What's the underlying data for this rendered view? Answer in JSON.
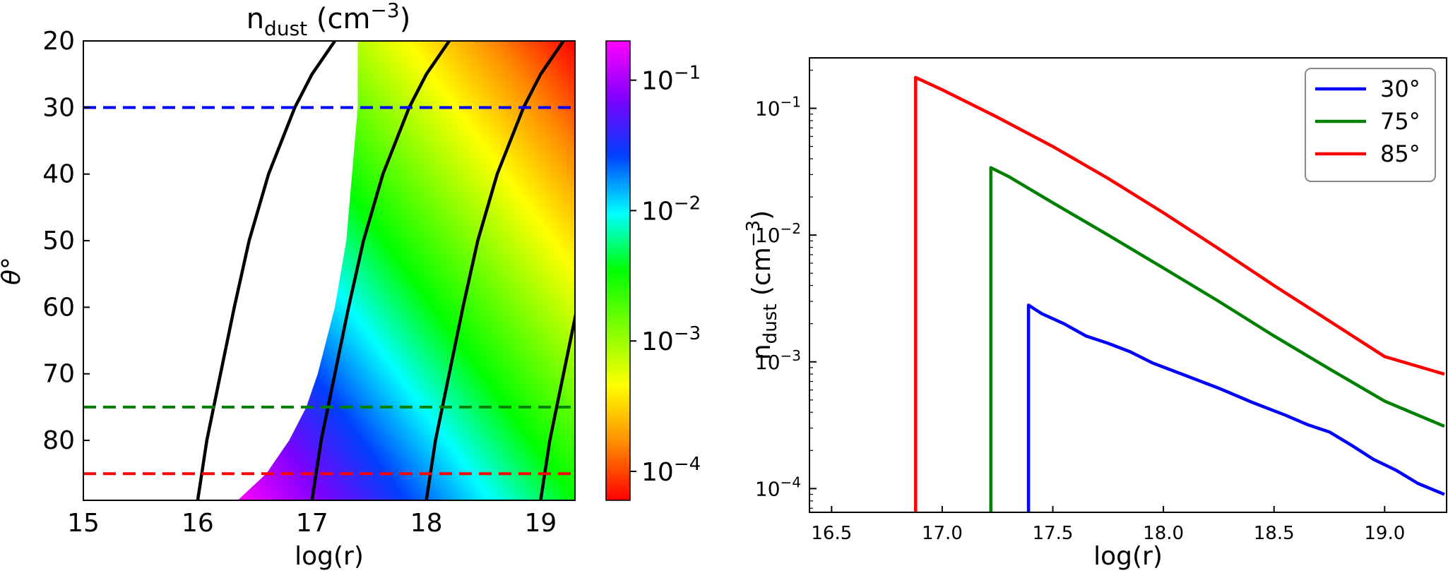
{
  "chart_data": [
    {
      "type": "heatmap",
      "title_main": "n",
      "title_sub": "dust",
      "title_unit": " (cm",
      "title_exp": "−3",
      "title_close": ")",
      "xlabel": "log(r)",
      "ylabel_symbol": "θ",
      "ylabel_degree": "°",
      "xlim": [
        15,
        19.3
      ],
      "ylim": [
        20,
        89
      ],
      "y_inverted": true,
      "xticks": [
        "15",
        "16",
        "17",
        "18",
        "19"
      ],
      "yticks": [
        "20",
        "30",
        "40",
        "50",
        "60",
        "70",
        "80"
      ],
      "colorbar": {
        "scale": "log",
        "range": [
          6e-05,
          0.2
        ],
        "ticks": [
          {
            "base": "10",
            "exp": "−1",
            "value": 0.1
          },
          {
            "base": "10",
            "exp": "−2",
            "value": 0.01
          },
          {
            "base": "10",
            "exp": "−3",
            "value": 0.001
          },
          {
            "base": "10",
            "exp": "−4",
            "value": 0.0001
          }
        ],
        "colors": [
          "#ff0000",
          "#ff8c00",
          "#ffff00",
          "#7fff00",
          "#00ff00",
          "#00ffff",
          "#0040ff",
          "#8000ff",
          "#ff00ff"
        ]
      },
      "density_boundary": {
        "theta": [
          20,
          30,
          40,
          50,
          60,
          70,
          75,
          80,
          85,
          89
        ],
        "logr": [
          17.4,
          17.4,
          17.35,
          17.3,
          17.2,
          17.05,
          16.95,
          16.8,
          16.6,
          16.35
        ]
      },
      "contours": [
        {
          "theta": [
            20,
            25,
            30,
            40,
            50,
            60,
            70,
            80,
            89
          ],
          "logr": [
            17.2,
            17.0,
            16.85,
            16.62,
            16.45,
            16.32,
            16.2,
            16.08,
            16.0
          ]
        },
        {
          "theta": [
            20,
            25,
            30,
            40,
            50,
            60,
            70,
            80,
            89
          ],
          "logr": [
            18.2,
            18.0,
            17.85,
            17.62,
            17.45,
            17.32,
            17.2,
            17.08,
            17.0
          ]
        },
        {
          "theta": [
            20,
            25,
            30,
            40,
            50,
            60,
            70,
            80,
            89
          ],
          "logr": [
            19.2,
            19.0,
            18.85,
            18.62,
            18.45,
            18.32,
            18.2,
            18.08,
            18.0
          ]
        },
        {
          "theta": [
            60,
            70,
            80,
            89
          ],
          "logr": [
            19.32,
            19.2,
            19.08,
            19.0
          ]
        }
      ],
      "hlines": [
        {
          "theta": 30,
          "color": "#0000ff"
        },
        {
          "theta": 75,
          "color": "#008000"
        },
        {
          "theta": 85,
          "color": "#ff0000"
        }
      ]
    },
    {
      "type": "line",
      "xlabel": "log(r)",
      "ylabel_main": "n",
      "ylabel_sub": "dust",
      "ylabel_unit": " (cm",
      "ylabel_exp": "−3",
      "ylabel_close": ")",
      "xlim": [
        16.4,
        19.28
      ],
      "ylim": [
        6.5e-05,
        0.25
      ],
      "yscale": "log",
      "xticks": [
        "16.5",
        "17.0",
        "17.5",
        "18.0",
        "18.5",
        "19.0"
      ],
      "yticks": [
        {
          "base": "10",
          "exp": "−1",
          "value": 0.1
        },
        {
          "base": "10",
          "exp": "−2",
          "value": 0.01
        },
        {
          "base": "10",
          "exp": "−3",
          "value": 0.001
        },
        {
          "base": "10",
          "exp": "−4",
          "value": 0.0001
        }
      ],
      "legend_position": "top-right",
      "series": [
        {
          "name": "30°",
          "color": "#0000ff",
          "x": [
            17.39,
            17.39,
            17.45,
            17.55,
            17.65,
            17.75,
            17.85,
            17.95,
            18.1,
            18.25,
            18.4,
            18.55,
            18.65,
            18.75,
            18.85,
            18.95,
            19.05,
            19.15,
            19.27
          ],
          "y": [
            6.5e-05,
            0.0028,
            0.0024,
            0.002,
            0.0016,
            0.0014,
            0.0012,
            0.00098,
            0.00078,
            0.00062,
            0.00048,
            0.00038,
            0.00032,
            0.00028,
            0.00022,
            0.00017,
            0.00014,
            0.00011,
            9e-05
          ]
        },
        {
          "name": "75°",
          "color": "#008000",
          "x": [
            17.22,
            17.22,
            17.3,
            17.5,
            17.75,
            18.0,
            18.25,
            18.5,
            18.75,
            19.0,
            19.27
          ],
          "y": [
            6.5e-05,
            0.034,
            0.029,
            0.018,
            0.01,
            0.0055,
            0.003,
            0.0016,
            0.00088,
            0.00049,
            0.00031
          ]
        },
        {
          "name": "85°",
          "color": "#ff0000",
          "x": [
            16.88,
            16.88,
            17.0,
            17.25,
            17.5,
            17.75,
            18.0,
            18.25,
            18.5,
            18.75,
            19.0,
            19.27
          ],
          "y": [
            6.5e-05,
            0.175,
            0.14,
            0.085,
            0.05,
            0.028,
            0.015,
            0.0078,
            0.004,
            0.0021,
            0.0011,
            0.0008
          ]
        }
      ]
    }
  ]
}
